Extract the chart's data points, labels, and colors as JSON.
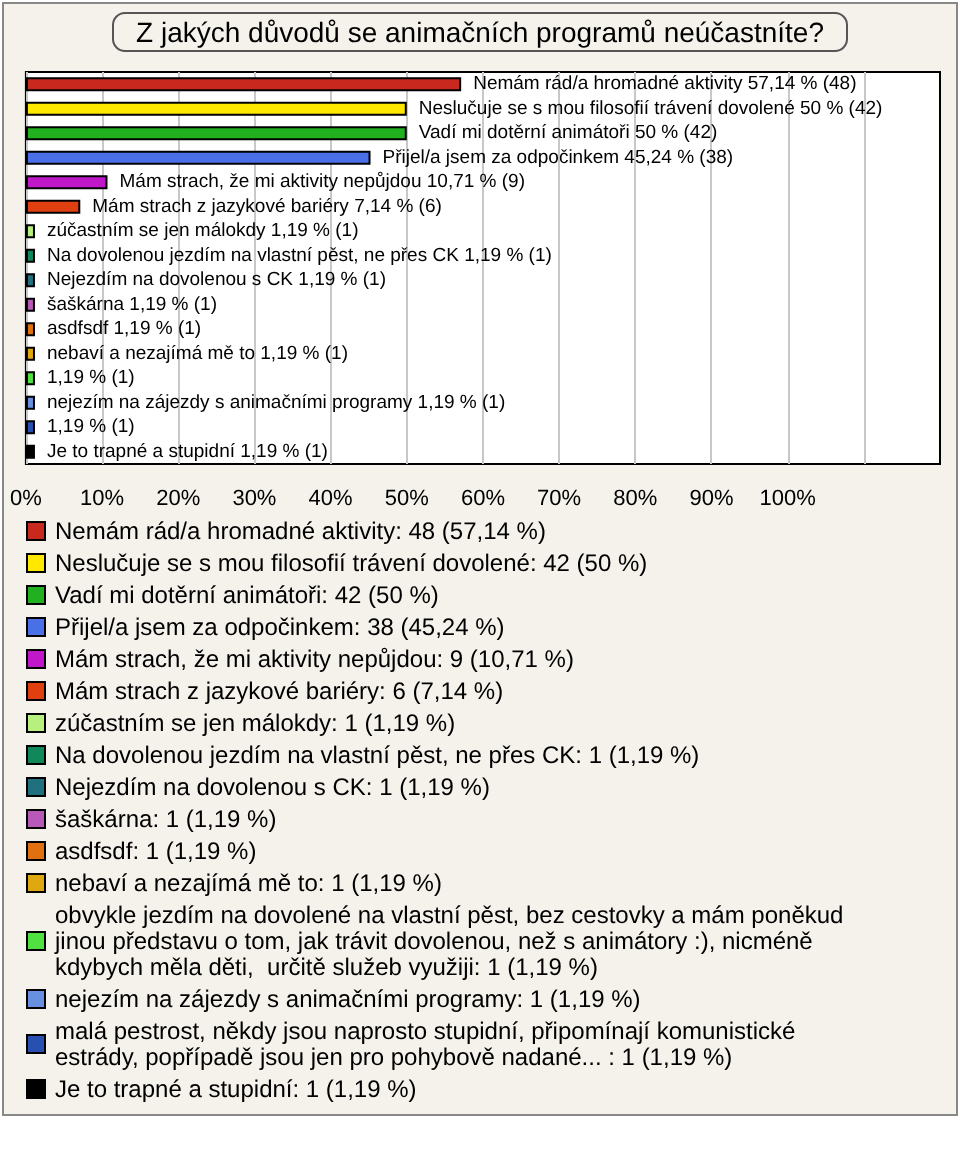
{
  "chart_data": {
    "type": "bar",
    "orientation": "horizontal",
    "title": "Z jakých důvodů se animačních programů neúčastníte?",
    "categories": [
      null,
      null,
      null,
      null,
      null,
      null,
      null,
      null,
      null,
      null,
      null,
      null,
      null,
      null,
      null,
      null
    ],
    "xlim": [
      0,
      120
    ],
    "xticks": [
      {
        "value": 0,
        "label": "0%"
      },
      {
        "value": 10,
        "label": "10%"
      },
      {
        "value": 20,
        "label": "20%"
      },
      {
        "value": 30,
        "label": "30%"
      },
      {
        "value": 40,
        "label": "40%"
      },
      {
        "value": 50,
        "label": "50%"
      },
      {
        "value": 60,
        "label": "60%"
      },
      {
        "value": 70,
        "label": "70%"
      },
      {
        "value": 80,
        "label": "80%"
      },
      {
        "value": 90,
        "label": "90%"
      },
      {
        "value": 100,
        "label": "100%"
      },
      {
        "value": 110,
        "label": null
      }
    ],
    "grid": "x",
    "tick_labels": "x",
    "legend": "bottom",
    "series": [
      {
        "name": "Nemám rád/a hromadné aktivity: 48 (57,14 %)",
        "color": "#c8281e",
        "values": [
          57.14,
          null,
          null,
          null,
          null,
          null,
          null,
          null,
          null,
          null,
          null,
          null,
          null,
          null,
          null,
          null
        ],
        "value_labels": [
          "Nemám rád/a hromadné aktivity 57,14 % (48)",
          null,
          null,
          null,
          null,
          null,
          null,
          null,
          null,
          null,
          null,
          null,
          null,
          null,
          null,
          null
        ]
      },
      {
        "name": "Neslučuje se s mou filosofií trávení dovolené: 42 (50 %)",
        "color": "#ffe800",
        "values": [
          null,
          50,
          null,
          null,
          null,
          null,
          null,
          null,
          null,
          null,
          null,
          null,
          null,
          null,
          null,
          null
        ],
        "value_labels": [
          null,
          "Neslučuje se s mou filosofií trávení dovolené 50 % (42)",
          null,
          null,
          null,
          null,
          null,
          null,
          null,
          null,
          null,
          null,
          null,
          null,
          null,
          null
        ]
      },
      {
        "name": "Vadí mi dotěrní animátoři: 42 (50 %)",
        "color": "#20b020",
        "values": [
          null,
          null,
          50,
          null,
          null,
          null,
          null,
          null,
          null,
          null,
          null,
          null,
          null,
          null,
          null,
          null
        ],
        "value_labels": [
          null,
          null,
          "Vadí mi dotěrní animátoři 50 % (42)",
          null,
          null,
          null,
          null,
          null,
          null,
          null,
          null,
          null,
          null,
          null,
          null,
          null
        ]
      },
      {
        "name": "Přijel/a jsem za odpočinkem: 38 (45,24 %)",
        "color": "#4a70e8",
        "values": [
          null,
          null,
          null,
          45.24,
          null,
          null,
          null,
          null,
          null,
          null,
          null,
          null,
          null,
          null,
          null,
          null
        ],
        "value_labels": [
          null,
          null,
          null,
          "Přijel/a jsem za odpočinkem 45,24 % (38)",
          null,
          null,
          null,
          null,
          null,
          null,
          null,
          null,
          null,
          null,
          null,
          null
        ]
      },
      {
        "name": "Mám strach, že mi aktivity nepůjdou: 9 (10,71 %)",
        "color": "#c018c8",
        "values": [
          null,
          null,
          null,
          null,
          10.71,
          null,
          null,
          null,
          null,
          null,
          null,
          null,
          null,
          null,
          null,
          null
        ],
        "value_labels": [
          null,
          null,
          null,
          null,
          "Mám strach, že mi aktivity nepůjdou 10,71 % (9)",
          null,
          null,
          null,
          null,
          null,
          null,
          null,
          null,
          null,
          null,
          null
        ]
      },
      {
        "name": "Mám strach z jazykové bariéry: 6 (7,14 %)",
        "color": "#e04010",
        "values": [
          null,
          null,
          null,
          null,
          null,
          7.14,
          null,
          null,
          null,
          null,
          null,
          null,
          null,
          null,
          null,
          null
        ],
        "value_labels": [
          null,
          null,
          null,
          null,
          null,
          "Mám strach z jazykové bariéry 7,14 % (6)",
          null,
          null,
          null,
          null,
          null,
          null,
          null,
          null,
          null,
          null
        ]
      },
      {
        "name": "zúčastním se jen málokdy: 1 (1,19 %)",
        "color": "#b8f080",
        "values": [
          null,
          null,
          null,
          null,
          null,
          null,
          1.19,
          null,
          null,
          null,
          null,
          null,
          null,
          null,
          null,
          null
        ],
        "value_labels": [
          null,
          null,
          null,
          null,
          null,
          null,
          "zúčastním se jen málokdy 1,19 % (1)",
          null,
          null,
          null,
          null,
          null,
          null,
          null,
          null,
          null
        ]
      },
      {
        "name": "Na dovolenou jezdím na vlastní pěst, ne přes CK: 1 (1,19 %)",
        "color": "#10885a",
        "values": [
          null,
          null,
          null,
          null,
          null,
          null,
          null,
          1.19,
          null,
          null,
          null,
          null,
          null,
          null,
          null,
          null
        ],
        "value_labels": [
          null,
          null,
          null,
          null,
          null,
          null,
          null,
          "Na dovolenou jezdím na vlastní pěst, ne přes CK 1,19 % (1)",
          null,
          null,
          null,
          null,
          null,
          null,
          null,
          null
        ]
      },
      {
        "name": "Nejezdím na dovolenou s CK: 1 (1,19 %)",
        "color": "#207080",
        "values": [
          null,
          null,
          null,
          null,
          null,
          null,
          null,
          null,
          1.19,
          null,
          null,
          null,
          null,
          null,
          null,
          null
        ],
        "value_labels": [
          null,
          null,
          null,
          null,
          null,
          null,
          null,
          null,
          "Nejezdím na dovolenou s CK 1,19 % (1)",
          null,
          null,
          null,
          null,
          null,
          null,
          null
        ]
      },
      {
        "name": "šaškárna: 1 (1,19 %)",
        "color": "#b858b8",
        "values": [
          null,
          null,
          null,
          null,
          null,
          null,
          null,
          null,
          null,
          1.19,
          null,
          null,
          null,
          null,
          null,
          null
        ],
        "value_labels": [
          null,
          null,
          null,
          null,
          null,
          null,
          null,
          null,
          null,
          "šaškárna 1,19 % (1)",
          null,
          null,
          null,
          null,
          null,
          null
        ]
      },
      {
        "name": "asdfsdf: 1 (1,19 %)",
        "color": "#e07010",
        "values": [
          null,
          null,
          null,
          null,
          null,
          null,
          null,
          null,
          null,
          null,
          1.19,
          null,
          null,
          null,
          null,
          null
        ],
        "value_labels": [
          null,
          null,
          null,
          null,
          null,
          null,
          null,
          null,
          null,
          null,
          "asdfsdf 1,19 % (1)",
          null,
          null,
          null,
          null,
          null
        ]
      },
      {
        "name": "nebaví a nezajímá mě to: 1 (1,19 %)",
        "color": "#e0a810",
        "values": [
          null,
          null,
          null,
          null,
          null,
          null,
          null,
          null,
          null,
          null,
          null,
          1.19,
          null,
          null,
          null,
          null
        ],
        "value_labels": [
          null,
          null,
          null,
          null,
          null,
          null,
          null,
          null,
          null,
          null,
          null,
          "nebaví a nezajímá mě to 1,19 % (1)",
          null,
          null,
          null,
          null
        ]
      },
      {
        "name": "obvykle jezdím na dovolené na vlastní pěst, bez cestovky a mám poněkud jinou představu o tom, jak trávit dovolenou, než s animátory :), nicméně kdybych měla děti,  určitě služeb využiji: 1 (1,19 %)",
        "color": "#50e040",
        "values": [
          null,
          null,
          null,
          null,
          null,
          null,
          null,
          null,
          null,
          null,
          null,
          null,
          1.19,
          null,
          null,
          null
        ],
        "value_labels": [
          null,
          null,
          null,
          null,
          null,
          null,
          null,
          null,
          null,
          null,
          null,
          null,
          "1,19 % (1)",
          null,
          null,
          null
        ]
      },
      {
        "name": "nejezím na zájezdy s animačními programy: 1 (1,19 %)",
        "color": "#6890e0",
        "values": [
          null,
          null,
          null,
          null,
          null,
          null,
          null,
          null,
          null,
          null,
          null,
          null,
          null,
          1.19,
          null,
          null
        ],
        "value_labels": [
          null,
          null,
          null,
          null,
          null,
          null,
          null,
          null,
          null,
          null,
          null,
          null,
          null,
          "nejezím na zájezdy s animačními programy 1,19 % (1)",
          null,
          null
        ]
      },
      {
        "name": "malá pestrost, někdy jsou naprosto stupidní, připomínají komunistické estrády, popřípadě jsou jen pro pohybově nadané... : 1 (1,19 %)",
        "color": "#2850b0",
        "values": [
          null,
          null,
          null,
          null,
          null,
          null,
          null,
          null,
          null,
          null,
          null,
          null,
          null,
          null,
          1.19,
          null
        ],
        "value_labels": [
          null,
          null,
          null,
          null,
          null,
          null,
          null,
          null,
          null,
          null,
          null,
          null,
          null,
          null,
          "1,19 % (1)",
          null
        ]
      },
      {
        "name": "Je to trapné a stupidní: 1 (1,19 %)",
        "color": "#000000",
        "values": [
          null,
          null,
          null,
          null,
          null,
          null,
          null,
          null,
          null,
          null,
          null,
          null,
          null,
          null,
          null,
          1.19
        ],
        "value_labels": [
          null,
          null,
          null,
          null,
          null,
          null,
          null,
          null,
          null,
          null,
          null,
          null,
          null,
          null,
          null,
          "Je to trapné a stupidní 1,19 % (1)"
        ]
      }
    ]
  }
}
